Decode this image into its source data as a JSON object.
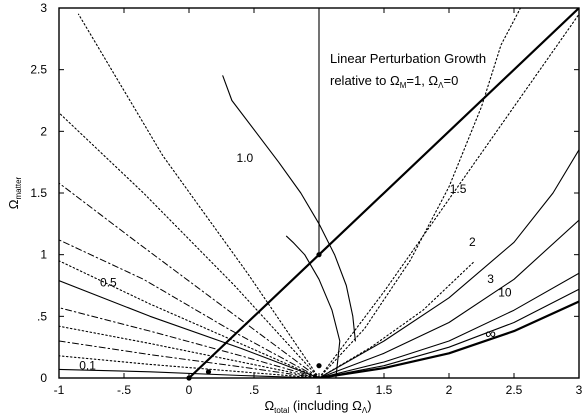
{
  "chart_data": {
    "type": "line",
    "title": "",
    "xlabel": {
      "main": "Ω",
      "sub": "total",
      "rest": " (including Ω",
      "sub2": "Λ",
      "close": ")"
    },
    "ylabel": {
      "main": "Ω",
      "sub": "matter"
    },
    "xlim": [
      -1,
      3
    ],
    "ylim": [
      0,
      3
    ],
    "xticks": [
      {
        "v": -1,
        "label": "-1"
      },
      {
        "v": -0.5,
        "label": "-.5"
      },
      {
        "v": 0,
        "label": "0"
      },
      {
        "v": 0.5,
        "label": ".5"
      },
      {
        "v": 1,
        "label": "1"
      },
      {
        "v": 1.5,
        "label": "1.5"
      },
      {
        "v": 2,
        "label": "2"
      },
      {
        "v": 2.5,
        "label": "2.5"
      },
      {
        "v": 3,
        "label": "3"
      }
    ],
    "yticks": [
      {
        "v": 0,
        "label": "0"
      },
      {
        "v": 0.5,
        "label": ".5"
      },
      {
        "v": 1,
        "label": "1"
      },
      {
        "v": 1.5,
        "label": "1.5"
      },
      {
        "v": 2,
        "label": "2"
      },
      {
        "v": 2.5,
        "label": "2.5"
      },
      {
        "v": 3,
        "label": "3"
      }
    ],
    "grid": false,
    "annotation": {
      "line1": "Linear Perturbation Growth",
      "line2_pre": "relative to Ω",
      "line2_sub1": "M",
      "line2_mid": "=1, Ω",
      "line2_sub2": "Λ",
      "line2_post": "=0"
    },
    "curve_labels": [
      {
        "text": "0.1",
        "x": -0.78,
        "y": 0.07
      },
      {
        "text": "0.5",
        "x": -0.62,
        "y": 0.74
      },
      {
        "text": "1.0",
        "x": 0.43,
        "y": 1.75
      },
      {
        "text": "1.5",
        "x": 2.07,
        "y": 1.5
      },
      {
        "text": "2",
        "x": 2.18,
        "y": 1.07
      },
      {
        "text": "3",
        "x": 2.32,
        "y": 0.77
      },
      {
        "text": "10",
        "x": 2.43,
        "y": 0.66
      },
      {
        "text": "∞",
        "x": 2.32,
        "y": 0.32
      }
    ],
    "series": [
      {
        "style": "solid-thick",
        "x": [
          0,
          3
        ],
        "y": [
          0,
          3
        ]
      },
      {
        "style": "solid",
        "x": [
          1,
          1
        ],
        "y": [
          1,
          3
        ]
      },
      {
        "style": "solid",
        "x": [
          1.28,
          1.26,
          1.21,
          1.12,
          1.0,
          0.86,
          0.69,
          0.51,
          0.33,
          0.26
        ],
        "y": [
          0.3,
          0.5,
          0.75,
          1.0,
          1.25,
          1.5,
          1.75,
          2.0,
          2.25,
          2.45
        ]
      },
      {
        "style": "solid",
        "x": [
          1.13,
          1.16,
          1.1,
          1.0,
          0.89,
          0.8,
          0.75
        ],
        "y": [
          0.0,
          0.3,
          0.55,
          0.8,
          1.0,
          1.1,
          1.15
        ]
      },
      {
        "style": "dotted",
        "x": [
          1.0,
          0.45,
          -0.2,
          -0.85
        ],
        "y": [
          0.0,
          0.85,
          1.8,
          2.95
        ]
      },
      {
        "style": "dotted",
        "x": [
          1.0,
          0.35,
          -0.35,
          -1.0
        ],
        "y": [
          0.0,
          0.75,
          1.5,
          2.15
        ]
      },
      {
        "style": "dashdot",
        "x": [
          1.0,
          0.3,
          -0.4,
          -1.0
        ],
        "y": [
          0.0,
          0.55,
          1.1,
          1.58
        ]
      },
      {
        "style": "dashdot",
        "x": [
          1.0,
          0.3,
          -0.35,
          -1.0
        ],
        "y": [
          0.0,
          0.4,
          0.8,
          1.12
        ]
      },
      {
        "style": "dotted",
        "x": [
          1.0,
          0.35,
          -0.3,
          -1.0
        ],
        "y": [
          0.0,
          0.3,
          0.6,
          0.95
        ]
      },
      {
        "style": "solid",
        "x": [
          1.0,
          0.4,
          -0.3,
          -1.0
        ],
        "y": [
          0.0,
          0.24,
          0.5,
          0.79
        ]
      },
      {
        "style": "dashdot",
        "x": [
          1.0,
          0.4,
          -0.3,
          -1.0
        ],
        "y": [
          0.0,
          0.18,
          0.38,
          0.57
        ]
      },
      {
        "style": "dotted",
        "x": [
          1.0,
          0.4,
          -0.3,
          -1.0
        ],
        "y": [
          0.0,
          0.13,
          0.28,
          0.42
        ]
      },
      {
        "style": "dashdot",
        "x": [
          1.0,
          0.4,
          -0.3,
          -1.0
        ],
        "y": [
          0.0,
          0.09,
          0.19,
          0.3
        ]
      },
      {
        "style": "dotted",
        "x": [
          1.0,
          0.4,
          -0.3,
          -1.0
        ],
        "y": [
          0.0,
          0.05,
          0.11,
          0.18
        ]
      },
      {
        "style": "solid",
        "x": [
          1.0,
          0.4,
          -0.3,
          -1.0
        ],
        "y": [
          0.0,
          0.02,
          0.05,
          0.07
        ]
      },
      {
        "style": "dotted",
        "x": [
          1.0,
          1.35,
          1.7,
          2.0,
          2.25,
          2.4,
          2.55
        ],
        "y": [
          0.0,
          0.4,
          0.95,
          1.55,
          2.2,
          2.7,
          3.0
        ]
      },
      {
        "style": "dotted",
        "x": [
          1.0,
          1.5,
          2.0,
          2.5,
          3.0
        ],
        "y": [
          0.0,
          0.7,
          1.45,
          2.2,
          2.95
        ]
      },
      {
        "style": "dotted",
        "x": [
          1.0,
          1.4,
          1.8,
          2.2
        ],
        "y": [
          0.0,
          0.25,
          0.55,
          0.95
        ]
      },
      {
        "style": "solid",
        "x": [
          1.0,
          1.5,
          2.0,
          2.5,
          2.8,
          3.0
        ],
        "y": [
          0.0,
          0.3,
          0.65,
          1.1,
          1.5,
          1.85
        ]
      },
      {
        "style": "solid",
        "x": [
          1.0,
          1.5,
          2.0,
          2.5,
          3.0
        ],
        "y": [
          0.0,
          0.2,
          0.45,
          0.8,
          1.28
        ]
      },
      {
        "style": "solid",
        "x": [
          1.0,
          1.5,
          2.0,
          2.5,
          3.0
        ],
        "y": [
          0.0,
          0.13,
          0.3,
          0.55,
          0.85
        ]
      },
      {
        "style": "solid",
        "x": [
          1.0,
          1.5,
          2.0,
          2.5,
          3.0
        ],
        "y": [
          0.0,
          0.1,
          0.25,
          0.45,
          0.72
        ]
      },
      {
        "style": "solid-thick",
        "x": [
          1.0,
          1.5,
          2.0,
          2.5,
          3.0
        ],
        "y": [
          0.0,
          0.08,
          0.2,
          0.38,
          0.62
        ]
      }
    ],
    "markers": [
      {
        "x": 1,
        "y": 1
      },
      {
        "x": 0,
        "y": 0
      },
      {
        "x": 1,
        "y": 0.1
      },
      {
        "x": 0.15,
        "y": 0.05
      }
    ]
  }
}
